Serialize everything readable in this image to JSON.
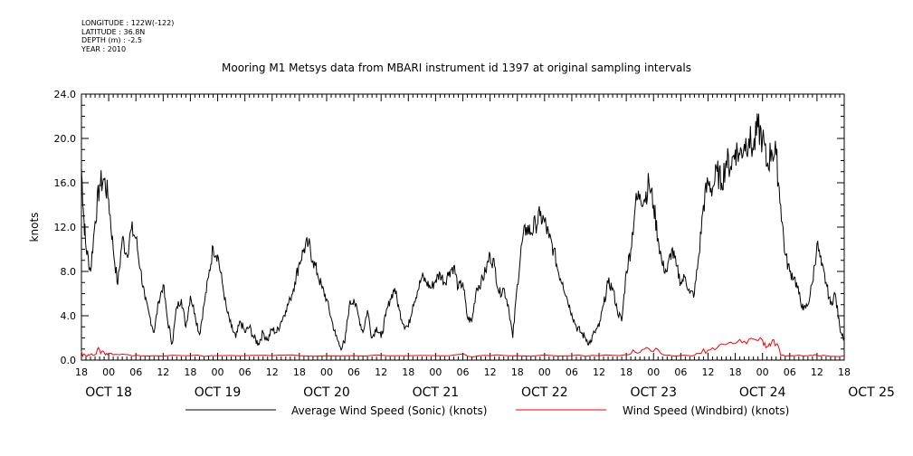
{
  "meta": {
    "longitude": "LONGITUDE : 122W(-122)",
    "latitude": "LATITUDE : 36.8N",
    "depth": "DEPTH (m) : -2.5",
    "year": "YEAR : 2010"
  },
  "chart_data": {
    "type": "line",
    "title": "Mooring M1 Metsys data from MBARI instrument id 1397 at original sampling intervals",
    "ylabel": "knots",
    "xlabel": "",
    "ylim": [
      0,
      24
    ],
    "yticks": [
      "0.0",
      "4.0",
      "8.0",
      "12.0",
      "16.0",
      "20.0",
      "24.0"
    ],
    "hour_ticks": [
      "18",
      "00",
      "06",
      "12",
      "18",
      "00",
      "06",
      "12",
      "18",
      "00",
      "06",
      "12",
      "18",
      "00",
      "06",
      "12",
      "18",
      "00",
      "06",
      "12",
      "18",
      "00",
      "06",
      "12",
      "18",
      "00",
      "06",
      "12",
      "18"
    ],
    "date_labels": [
      "OCT 18",
      "OCT 19",
      "OCT 20",
      "OCT 21",
      "OCT 22",
      "OCT 23",
      "OCT 24",
      "OCT 25"
    ],
    "x_unit": "hours since OCT 18 18:00",
    "x_range": [
      0,
      168
    ],
    "grid": false,
    "legend_position": "bottom",
    "series": [
      {
        "name": "Average Wind Speed (Sonic) (knots)",
        "color": "#000000",
        "points": [
          [
            0,
            17.3
          ],
          [
            0.5,
            13.0
          ],
          [
            1,
            10.2
          ],
          [
            2,
            8.0
          ],
          [
            3,
            12.5
          ],
          [
            4,
            15.8
          ],
          [
            5,
            16.3
          ],
          [
            6,
            14.5
          ],
          [
            7,
            10.0
          ],
          [
            8,
            6.8
          ],
          [
            9,
            11.0
          ],
          [
            10,
            9.5
          ],
          [
            11,
            11.8
          ],
          [
            12,
            11.0
          ],
          [
            13,
            8.2
          ],
          [
            14,
            5.5
          ],
          [
            15,
            4.0
          ],
          [
            16,
            2.5
          ],
          [
            17,
            5.3
          ],
          [
            18,
            6.8
          ],
          [
            19,
            3.5
          ],
          [
            20,
            1.5
          ],
          [
            21,
            4.8
          ],
          [
            22,
            5.5
          ],
          [
            23,
            3.0
          ],
          [
            24,
            5.8
          ],
          [
            25,
            4.2
          ],
          [
            26,
            2.3
          ],
          [
            27,
            5.0
          ],
          [
            28,
            7.5
          ],
          [
            29,
            10.2
          ],
          [
            30,
            9.5
          ],
          [
            31,
            7.0
          ],
          [
            32,
            4.5
          ],
          [
            33,
            3.0
          ],
          [
            34,
            2.0
          ],
          [
            35,
            3.5
          ],
          [
            36,
            2.5
          ],
          [
            37,
            3.0
          ],
          [
            38,
            2.0
          ],
          [
            39,
            1.5
          ],
          [
            40,
            2.5
          ],
          [
            41,
            1.8
          ],
          [
            42,
            2.8
          ],
          [
            43,
            2.5
          ],
          [
            44,
            3.5
          ],
          [
            45,
            4.5
          ],
          [
            46,
            5.5
          ],
          [
            47,
            7.0
          ],
          [
            48,
            8.8
          ],
          [
            49,
            10.0
          ],
          [
            50,
            10.5
          ],
          [
            51,
            9.0
          ],
          [
            52,
            7.8
          ],
          [
            53,
            6.5
          ],
          [
            54,
            5.5
          ],
          [
            55,
            3.8
          ],
          [
            56,
            2.2
          ],
          [
            57,
            1.2
          ],
          [
            58,
            1.5
          ],
          [
            59,
            5.0
          ],
          [
            60,
            5.5
          ],
          [
            61,
            4.0
          ],
          [
            62,
            2.5
          ],
          [
            63,
            4.5
          ],
          [
            64,
            2.0
          ],
          [
            65,
            3.0
          ],
          [
            66,
            2.0
          ],
          [
            67,
            4.0
          ],
          [
            68,
            5.5
          ],
          [
            69,
            6.5
          ],
          [
            70,
            4.5
          ],
          [
            71,
            3.2
          ],
          [
            72,
            3.0
          ],
          [
            73,
            5.0
          ],
          [
            74,
            6.2
          ],
          [
            75,
            7.5
          ],
          [
            76,
            7.0
          ],
          [
            77,
            6.5
          ],
          [
            78,
            7.2
          ],
          [
            79,
            7.8
          ],
          [
            80,
            7.0
          ],
          [
            81,
            8.0
          ],
          [
            82,
            8.5
          ],
          [
            83,
            6.5
          ],
          [
            84,
            7.0
          ],
          [
            85,
            3.8
          ],
          [
            86,
            3.5
          ],
          [
            87,
            6.5
          ],
          [
            88,
            7.0
          ],
          [
            89,
            8.0
          ],
          [
            90,
            9.5
          ],
          [
            91,
            8.5
          ],
          [
            92,
            6.0
          ],
          [
            93,
            6.5
          ],
          [
            94,
            5.0
          ],
          [
            95,
            2.0
          ],
          [
            96,
            6.8
          ],
          [
            97,
            10.5
          ],
          [
            98,
            12.0
          ],
          [
            99,
            11.5
          ],
          [
            100,
            12.3
          ],
          [
            101,
            13.0
          ],
          [
            102,
            12.5
          ],
          [
            103,
            11.0
          ],
          [
            104,
            10.0
          ],
          [
            105,
            8.0
          ],
          [
            106,
            7.0
          ],
          [
            107,
            5.5
          ],
          [
            108,
            4.2
          ],
          [
            109,
            3.0
          ],
          [
            110,
            2.5
          ],
          [
            111,
            2.0
          ],
          [
            112,
            1.5
          ],
          [
            113,
            2.5
          ],
          [
            114,
            3.0
          ],
          [
            115,
            5.0
          ],
          [
            116,
            7.0
          ],
          [
            117,
            6.5
          ],
          [
            118,
            4.5
          ],
          [
            119,
            3.5
          ],
          [
            120,
            8.0
          ],
          [
            121,
            10.0
          ],
          [
            122,
            14.0
          ],
          [
            123,
            15.0
          ],
          [
            124,
            14.5
          ],
          [
            125,
            16.0
          ],
          [
            126,
            14.0
          ],
          [
            127,
            11.0
          ],
          [
            128,
            8.5
          ],
          [
            129,
            8.0
          ],
          [
            130,
            10.0
          ],
          [
            131,
            8.5
          ],
          [
            132,
            7.0
          ],
          [
            133,
            7.5
          ],
          [
            134,
            6.0
          ],
          [
            135,
            6.0
          ],
          [
            136,
            9.5
          ],
          [
            137,
            14.0
          ],
          [
            138,
            16.0
          ],
          [
            139,
            15.5
          ],
          [
            140,
            17.0
          ],
          [
            141,
            16.0
          ],
          [
            142,
            18.0
          ],
          [
            143,
            17.5
          ],
          [
            144,
            19.0
          ],
          [
            145,
            18.5
          ],
          [
            146,
            19.5
          ],
          [
            147,
            20.0
          ],
          [
            148,
            19.0
          ],
          [
            149,
            21.0
          ],
          [
            150,
            20.0
          ],
          [
            151,
            17.5
          ],
          [
            152,
            19.0
          ],
          [
            153,
            18.5
          ],
          [
            154,
            14.0
          ],
          [
            155,
            9.5
          ],
          [
            156,
            8.0
          ],
          [
            157,
            7.5
          ],
          [
            158,
            6.0
          ],
          [
            159,
            4.5
          ],
          [
            160,
            5.0
          ],
          [
            161,
            7.0
          ],
          [
            162,
            10.5
          ],
          [
            163,
            8.5
          ],
          [
            164,
            7.0
          ],
          [
            165,
            5.0
          ],
          [
            166,
            6.0
          ],
          [
            167,
            3.0
          ],
          [
            168,
            2.0
          ]
        ]
      },
      {
        "name": "Wind Speed (Windbird) (knots)",
        "color": "#ff0000",
        "points": [
          [
            0,
            0.8
          ],
          [
            1,
            0.4
          ],
          [
            2,
            0.5
          ],
          [
            3,
            0.5
          ],
          [
            4,
            0.9
          ],
          [
            5,
            0.7
          ],
          [
            6,
            0.6
          ],
          [
            8,
            0.5
          ],
          [
            10,
            0.5
          ],
          [
            12,
            0.45
          ],
          [
            16,
            0.4
          ],
          [
            24,
            0.4
          ],
          [
            30,
            0.4
          ],
          [
            36,
            0.4
          ],
          [
            42,
            0.4
          ],
          [
            48,
            0.4
          ],
          [
            60,
            0.4
          ],
          [
            70,
            0.4
          ],
          [
            78,
            0.4
          ],
          [
            84,
            0.55
          ],
          [
            85,
            0.35
          ],
          [
            90,
            0.4
          ],
          [
            96,
            0.4
          ],
          [
            108,
            0.4
          ],
          [
            114,
            0.4
          ],
          [
            120,
            0.5
          ],
          [
            122,
            0.7
          ],
          [
            124,
            1.0
          ],
          [
            126,
            0.8
          ],
          [
            128,
            0.5
          ],
          [
            130,
            0.4
          ],
          [
            134,
            0.4
          ],
          [
            136,
            0.6
          ],
          [
            138,
            0.9
          ],
          [
            140,
            1.1
          ],
          [
            142,
            1.4
          ],
          [
            144,
            1.5
          ],
          [
            146,
            1.7
          ],
          [
            148,
            1.9
          ],
          [
            150,
            1.8
          ],
          [
            151,
            1.2
          ],
          [
            152,
            1.6
          ],
          [
            153,
            1.4
          ],
          [
            154,
            0.4
          ],
          [
            156,
            0.4
          ],
          [
            160,
            0.4
          ],
          [
            162,
            0.45
          ],
          [
            164,
            0.4
          ],
          [
            168,
            0.4
          ]
        ]
      }
    ]
  }
}
